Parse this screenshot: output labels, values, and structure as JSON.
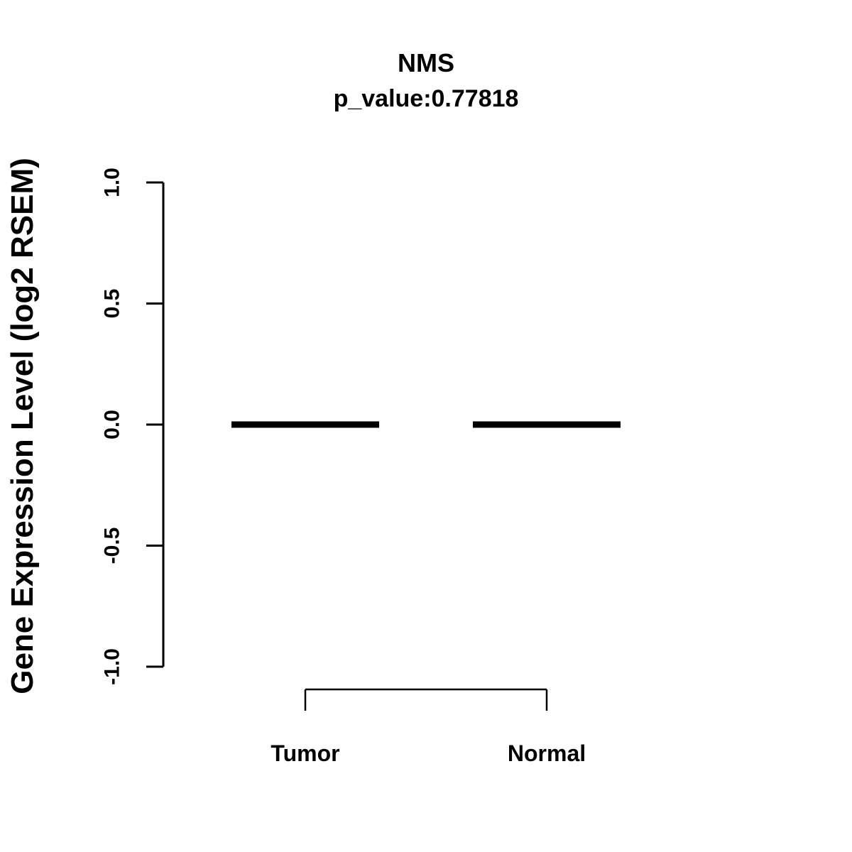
{
  "chart_data": {
    "type": "boxplot",
    "title": "NMS",
    "subtitle": "p_value:0.77818",
    "ylabel": "Gene Expression Level (log2 RSEM)",
    "xlabel": "",
    "ylim": [
      -1.0,
      1.0
    ],
    "ytick_values": [
      -1.0,
      -0.5,
      0.0,
      0.5,
      1.0
    ],
    "yticks": [
      "-1.0",
      "-0.5",
      "0.0",
      "0.5",
      "1.0"
    ],
    "categories": [
      "Tumor",
      "Normal"
    ],
    "series": [
      {
        "name": "Tumor",
        "median": 0.0,
        "q1": 0.0,
        "q3": 0.0,
        "min": 0.0,
        "max": 0.0
      },
      {
        "name": "Normal",
        "median": 0.0,
        "q1": 0.0,
        "q3": 0.0,
        "min": 0.0,
        "max": 0.0
      }
    ],
    "grid": false,
    "legend": "none",
    "colors": {
      "line": "#000000",
      "background": "#ffffff"
    }
  }
}
